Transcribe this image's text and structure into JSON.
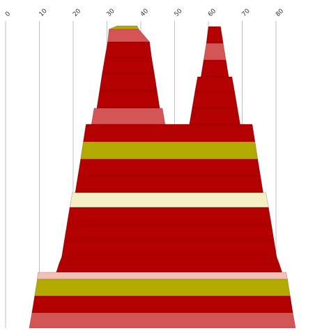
{
  "chart_data": {
    "type": "area",
    "orientation": "horizontal-stacked-profile",
    "title": "",
    "xlabel": "",
    "ylabel": "",
    "xlim": [
      0,
      85
    ],
    "x_ticks": [
      0,
      10,
      20,
      30,
      40,
      50,
      60,
      70,
      80
    ],
    "tick_label_rotation": -45,
    "grid": true,
    "colors": {
      "dark_red": "#b30000",
      "light_red": "#d45555",
      "olive": "#b2aa00",
      "cream": "#f3f0c6",
      "pink": "#f2c0b8"
    },
    "peaks": [
      {
        "id": "left-peak",
        "bands": [
          {
            "top": [
              33.0,
              38.9
            ],
            "bottom": [
              30.6,
              39.4
            ],
            "color": "olive"
          },
          {
            "top": [
              30.6,
              39.4
            ],
            "bottom": [
              30.2,
              42.6
            ],
            "color": "light_red"
          },
          {
            "top": [
              30.2,
              42.6
            ],
            "bottom": [
              29.4,
              43.2
            ],
            "color": "dark_red"
          },
          {
            "top": [
              29.4,
              43.2
            ],
            "bottom": [
              28.6,
              44.0
            ],
            "color": "dark_red"
          },
          {
            "top": [
              28.6,
              44.0
            ],
            "bottom": [
              27.8,
              44.8
            ],
            "color": "dark_red"
          },
          {
            "top": [
              27.8,
              44.8
            ],
            "bottom": [
              27.0,
              45.6
            ],
            "color": "dark_red"
          },
          {
            "top": [
              27.0,
              45.6
            ],
            "bottom": [
              26.2,
              46.4
            ],
            "color": "dark_red"
          },
          {
            "top": [
              26.2,
              46.4
            ],
            "bottom": [
              25.4,
              47.2
            ],
            "color": "light_red"
          }
        ]
      },
      {
        "id": "right-peak",
        "bands": [
          {
            "top": [
              60.0,
              63.6
            ],
            "bottom": [
              59.4,
              64.4
            ],
            "color": "dark_red"
          },
          {
            "top": [
              59.4,
              64.4
            ],
            "bottom": [
              58.6,
              65.2
            ],
            "color": "light_red"
          },
          {
            "top": [
              58.6,
              65.2
            ],
            "bottom": [
              57.8,
              66.0
            ],
            "color": "dark_red"
          },
          {
            "top": [
              56.8,
              67.0
            ],
            "bottom": [
              56.0,
              67.8
            ],
            "color": "dark_red"
          },
          {
            "top": [
              56.0,
              67.8
            ],
            "bottom": [
              55.2,
              68.6
            ],
            "color": "dark_red"
          },
          {
            "top": [
              55.2,
              68.6
            ],
            "bottom": [
              54.4,
              69.4
            ],
            "color": "dark_red"
          }
        ]
      },
      {
        "id": "base",
        "bands": [
          {
            "top": [
              23.8,
              73.0
            ],
            "bottom": [
              23.0,
              73.8
            ],
            "color": "dark_red"
          },
          {
            "top": [
              23.0,
              73.8
            ],
            "bottom": [
              22.2,
              74.6
            ],
            "color": "olive"
          },
          {
            "top": [
              22.2,
              74.6
            ],
            "bottom": [
              21.4,
              75.4
            ],
            "color": "dark_red"
          },
          {
            "top": [
              21.4,
              75.4
            ],
            "bottom": [
              20.6,
              76.2
            ],
            "color": "dark_red"
          },
          {
            "top": [
              19.8,
              77.0
            ],
            "bottom": [
              19.0,
              77.8
            ],
            "color": "cream"
          },
          {
            "top": [
              19.0,
              77.8
            ],
            "bottom": [
              18.2,
              78.6
            ],
            "color": "dark_red"
          },
          {
            "top": [
              18.2,
              78.6
            ],
            "bottom": [
              17.4,
              79.4
            ],
            "color": "dark_red"
          },
          {
            "top": [
              17.4,
              79.4
            ],
            "bottom": [
              16.6,
              80.2
            ],
            "color": "dark_red"
          },
          {
            "top": [
              16.6,
              80.2
            ],
            "bottom": [
              15.8,
              81.0
            ],
            "color": "dark_red"
          },
          {
            "top": [
              15.8,
              81.0
            ],
            "bottom": [
              15.0,
              81.8
            ],
            "color": "dark_red"
          },
          {
            "top": [
              9.6,
              83.0
            ],
            "bottom": [
              9.4,
              83.4
            ],
            "color": "pink"
          },
          {
            "top": [
              9.4,
              83.4
            ],
            "bottom": [
              8.6,
              84.2
            ],
            "color": "olive"
          },
          {
            "top": [
              8.6,
              84.2
            ],
            "bottom": [
              7.8,
              85.0
            ],
            "color": "dark_red"
          },
          {
            "top": [
              7.8,
              85.0
            ],
            "bottom": [
              7.0,
              85.8
            ],
            "color": "light_red"
          }
        ]
      }
    ]
  }
}
